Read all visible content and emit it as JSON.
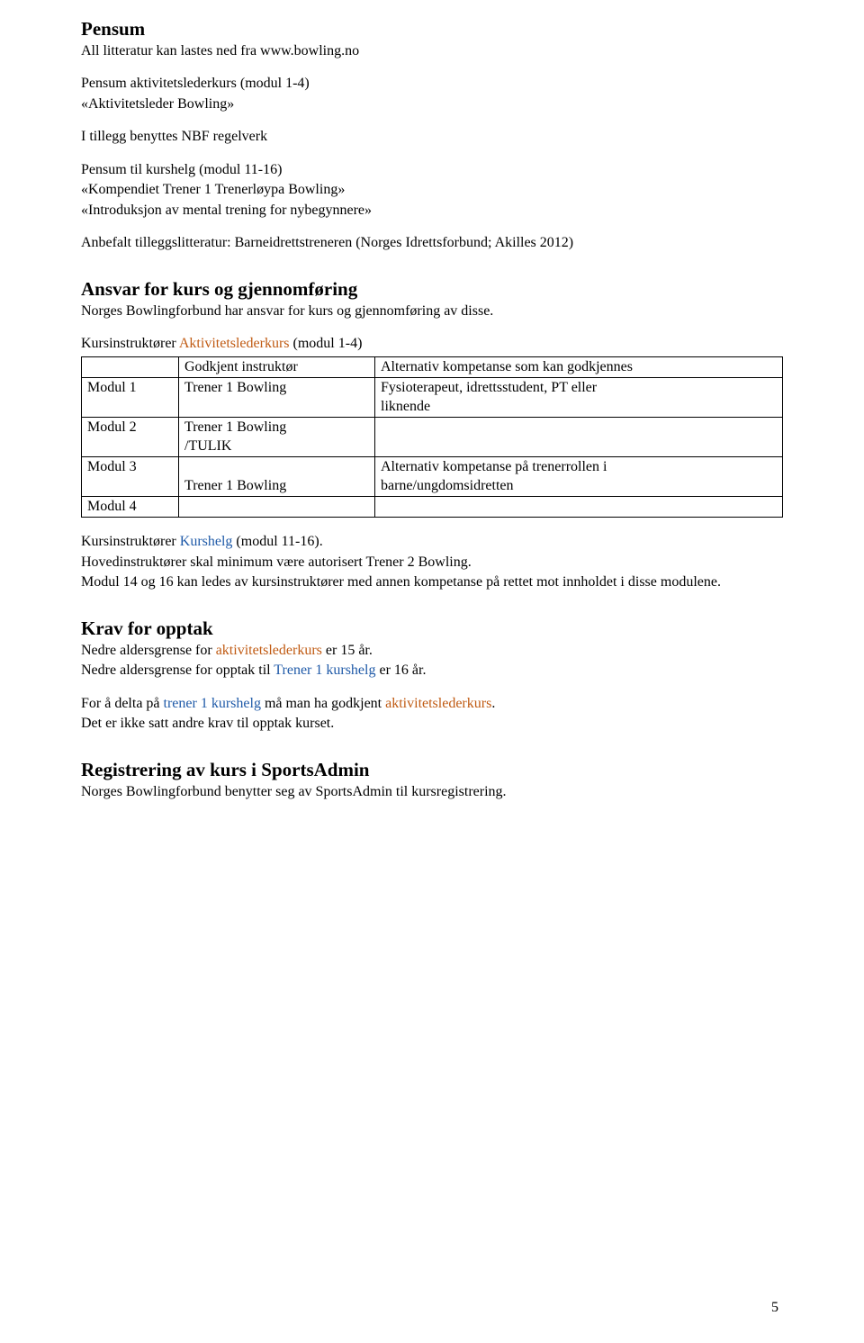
{
  "colors": {
    "orange": "#c05a12",
    "blue": "#1f5aa8"
  },
  "pensum": {
    "heading": "Pensum",
    "line_intro": "All litteratur kan lastes ned fra www.bowling.no",
    "line_p1": "Pensum aktivitetslederkurs (modul 1-4)",
    "line_p2": "«Aktivitetsleder Bowling»",
    "line_p3": "I tillegg benyttes NBF regelverk",
    "line_p4": "Pensum til kurshelg (modul 11-16)",
    "line_p5": "«Kompendiet Trener 1 Trenerløypa Bowling»",
    "line_p6": "«Introduksjon av mental trening for nybegynnere»",
    "line_anbefalt": "Anbefalt tilleggslitteratur: Barneidrettstreneren (Norges Idrettsforbund; Akilles 2012)"
  },
  "ansvar": {
    "heading": "Ansvar for kurs og gjennomføring",
    "line1": "Norges Bowlingforbund har ansvar for kurs og gjennomføring av disse.",
    "line2_pre": "Kursinstruktører ",
    "line2_highlight": "Aktivitetslederkurs",
    "line2_post": " (modul 1-4)"
  },
  "table": {
    "header": {
      "c0": "",
      "c1": "Godkjent instruktør",
      "c2": "Alternativ kompetanse som kan godkjennes"
    },
    "rows": [
      {
        "c0": "Modul 1",
        "c1": "Trener 1 Bowling",
        "c2a": "Fysioterapeut, idrettsstudent, PT eller",
        "c2b": "liknende"
      },
      {
        "c0": "Modul 2",
        "c1a": "Trener 1 Bowling",
        "c1b": "/TULIK",
        "c2": ""
      },
      {
        "c0": "Modul 3",
        "c1": "Trener 1 Bowling",
        "c1pad": true,
        "c2a": "Alternativ kompetanse på trenerrollen i",
        "c2b": "barne/ungdomsidretten"
      },
      {
        "c0": "Modul 4",
        "c1": "",
        "c2": ""
      }
    ]
  },
  "kursinstr": {
    "line1_pre": "Kursinstruktører ",
    "line1_highlight": "Kurshelg",
    "line1_post": " (modul 11-16).",
    "line2": "Hovedinstruktører skal minimum være autorisert Trener 2 Bowling.",
    "line3": "Modul 14 og 16 kan ledes av kursinstruktører med annen kompetanse på rettet mot innholdet i disse modulene."
  },
  "krav": {
    "heading": "Krav for opptak",
    "l1_pre": "Nedre aldersgrense for ",
    "l1_hi": "aktivitetslederkurs",
    "l1_post": " er 15 år.",
    "l2_pre": "Nedre aldersgrense for opptak til ",
    "l2_hi": "Trener 1 kurshelg",
    "l2_post": " er 16 år.",
    "l3_pre": "For å delta på ",
    "l3_hi1": "trener 1 kurshelg",
    "l3_mid": " må man ha godkjent ",
    "l3_hi2": "aktivitetslederkurs",
    "l3_post": ".",
    "l4": "Det er ikke satt andre krav til opptak kurset."
  },
  "reg": {
    "heading": "Registrering av kurs i SportsAdmin",
    "line1": "Norges Bowlingforbund benytter seg av SportsAdmin til kursregistrering."
  },
  "page_number": "5"
}
